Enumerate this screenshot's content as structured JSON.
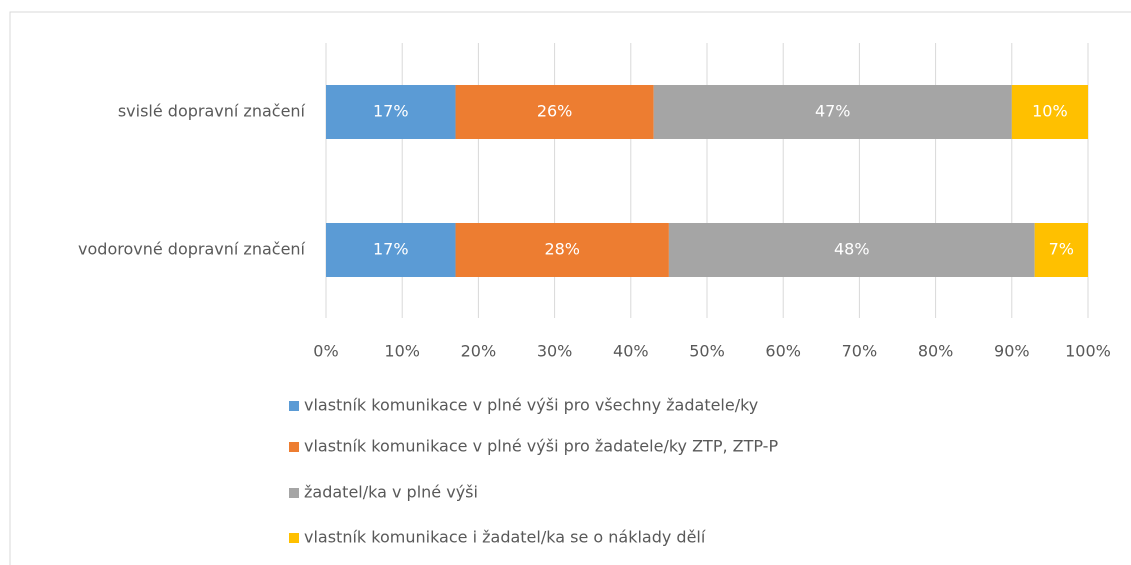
{
  "chart_data": {
    "type": "stacked-bar-horizontal",
    "categories": [
      "svislé dopravní značení",
      "vodorovné dopravní značení"
    ],
    "series": [
      {
        "name": "vlastník komunikace v plné výši pro všechny žadatele/ky",
        "color": "#5b9bd5",
        "values": [
          17,
          17
        ],
        "value_labels": [
          "17%",
          "17%"
        ]
      },
      {
        "name": "vlastník komunikace v plné výši pro žadatele/ky ZTP, ZTP-P",
        "color": "#ed7d31",
        "values": [
          26,
          28
        ],
        "value_labels": [
          "26%",
          "28%"
        ]
      },
      {
        "name": "žadatel/ka v plné výši",
        "color": "#a5a5a5",
        "values": [
          47,
          48
        ],
        "value_labels": [
          "47%",
          "48%"
        ]
      },
      {
        "name": "vlastník komunikace i žadatel/ka se o náklady dělí",
        "color": "#ffc000",
        "values": [
          10,
          7
        ],
        "value_labels": [
          "10%",
          "7%"
        ]
      }
    ],
    "xlim": [
      0,
      100
    ],
    "xticks": [
      {
        "value": 0,
        "label": "0%"
      },
      {
        "value": 10,
        "label": "10%"
      },
      {
        "value": 20,
        "label": "20%"
      },
      {
        "value": 30,
        "label": "30%"
      },
      {
        "value": 40,
        "label": "40%"
      },
      {
        "value": 50,
        "label": "50%"
      },
      {
        "value": 60,
        "label": "60%"
      },
      {
        "value": 70,
        "label": "70%"
      },
      {
        "value": 80,
        "label": "80%"
      },
      {
        "value": 90,
        "label": "90%"
      },
      {
        "value": 100,
        "label": "100%"
      }
    ],
    "grid": true,
    "legend": "bottom"
  }
}
